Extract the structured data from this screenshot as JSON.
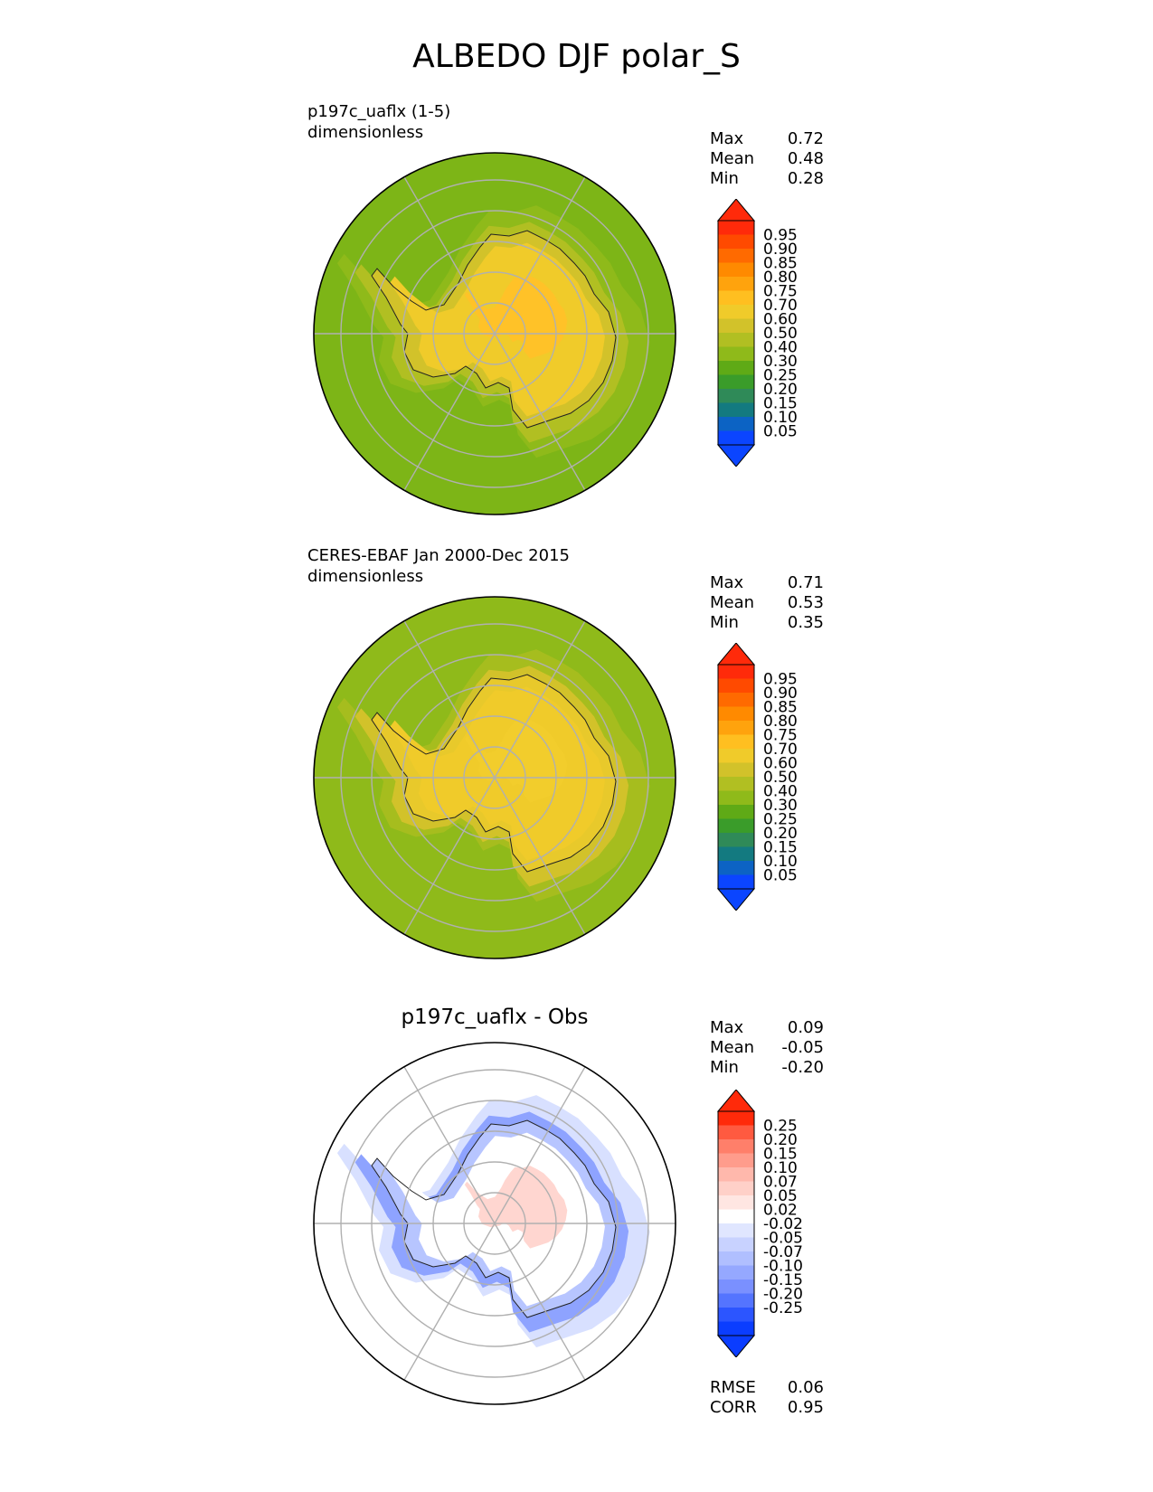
{
  "title": "ALBEDO DJF polar_S",
  "chart_data": [
    {
      "type": "heatmap",
      "projection": "south-polar-stereographic",
      "title_line1": "p197c_uaflx (1-5)",
      "title_line2": "dimensionless",
      "stats": [
        {
          "label": "Max",
          "value": "0.72"
        },
        {
          "label": "Mean",
          "value": "0.48"
        },
        {
          "label": "Min",
          "value": "0.28"
        }
      ],
      "colorbar": {
        "ticks": [
          "0.95",
          "0.90",
          "0.85",
          "0.80",
          "0.75",
          "0.70",
          "0.60",
          "0.50",
          "0.40",
          "0.30",
          "0.25",
          "0.20",
          "0.15",
          "0.10",
          "0.05"
        ],
        "colors": [
          "#ff2a0a",
          "#ff4a00",
          "#ff6a00",
          "#ff8a00",
          "#ffa30d",
          "#ffbf20",
          "#f0cb2a",
          "#d2c22a",
          "#b1bf22",
          "#8fba1a",
          "#5faa16",
          "#3a9c2a",
          "#2f8a58",
          "#137a80",
          "#0c63c4",
          "#0b45ff"
        ],
        "extend_top": "#ff2a0a",
        "extend_bottom": "#0b45ff"
      },
      "field": {
        "ocean_far": "#7db517",
        "ocean_mid": "#8fba1a",
        "sea_ice": "#b1bf22",
        "coast": "#d2c22a",
        "interior": "#f0cb2a",
        "plateau": "#ffc228"
      }
    },
    {
      "type": "heatmap",
      "projection": "south-polar-stereographic",
      "title_line1": "CERES-EBAF Jan 2000-Dec 2015",
      "title_line2": "dimensionless",
      "stats": [
        {
          "label": "Max",
          "value": "0.71"
        },
        {
          "label": "Mean",
          "value": "0.53"
        },
        {
          "label": "Min",
          "value": "0.35"
        }
      ],
      "colorbar": {
        "ticks": [
          "0.95",
          "0.90",
          "0.85",
          "0.80",
          "0.75",
          "0.70",
          "0.60",
          "0.50",
          "0.40",
          "0.30",
          "0.25",
          "0.20",
          "0.15",
          "0.10",
          "0.05"
        ],
        "colors": [
          "#ff2a0a",
          "#ff4a00",
          "#ff6a00",
          "#ff8a00",
          "#ffa30d",
          "#ffbf20",
          "#f0cb2a",
          "#d2c22a",
          "#b1bf22",
          "#8fba1a",
          "#5faa16",
          "#3a9c2a",
          "#2f8a58",
          "#137a80",
          "#0c63c4",
          "#0b45ff"
        ],
        "extend_top": "#ff2a0a",
        "extend_bottom": "#0b45ff"
      },
      "field": {
        "ocean_far": "#8fba1a",
        "ocean_mid": "#a6bd1e",
        "sea_ice": "#d2c22a",
        "coast": "#e8c92b",
        "interior": "#f0cb2a",
        "plateau": "#f2cd2c"
      }
    },
    {
      "type": "heatmap",
      "projection": "south-polar-stereographic",
      "title": "p197c_uaflx - Obs",
      "stats": [
        {
          "label": "Max",
          "value": "0.09"
        },
        {
          "label": "Mean",
          "value": "-0.05"
        },
        {
          "label": "Min",
          "value": "-0.20"
        }
      ],
      "extra_stats": [
        {
          "label": "RMSE",
          "value": "0.06"
        },
        {
          "label": "CORR",
          "value": "0.95"
        }
      ],
      "colorbar": {
        "ticks": [
          "0.25",
          "0.20",
          "0.15",
          "0.10",
          "0.07",
          "0.05",
          "0.02",
          "-0.02",
          "-0.05",
          "-0.07",
          "-0.10",
          "-0.15",
          "-0.20",
          "-0.25"
        ],
        "colors": [
          "#ff2a0a",
          "#ff5a40",
          "#ff7f6a",
          "#ff9c8c",
          "#ffb8ac",
          "#ffd0c8",
          "#ffe6e2",
          "#ffffff",
          "#e0e6ff",
          "#c8d2ff",
          "#b0bfff",
          "#95a8ff",
          "#7a90ff",
          "#5474ff",
          "#2c55ff",
          "#0b3dff"
        ],
        "extend_top": "#ff2a0a",
        "extend_bottom": "#0b3dff"
      },
      "field": {
        "ocean_far": "#ffffff",
        "ocean_mid": "#d8e0ff",
        "sea_ice": "#8ea3ff",
        "coast": "#b7c5ff",
        "interior": "#ffffff",
        "plateau": "#ffd6d0"
      }
    }
  ]
}
